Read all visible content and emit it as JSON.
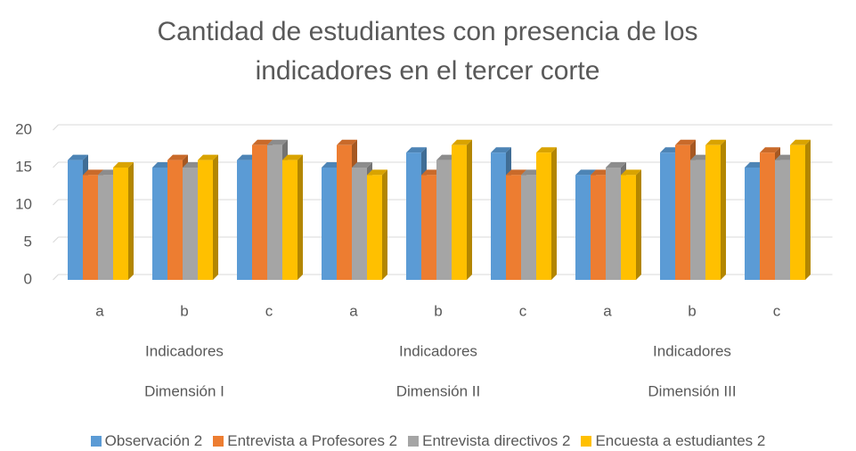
{
  "chart_data": {
    "type": "bar3d",
    "title": "Cantidad de estudiantes con presencia de los indicadores en el tercer corte",
    "categories": [
      "a",
      "b",
      "c",
      "a",
      "b",
      "c",
      "a",
      "b",
      "c"
    ],
    "groups": [
      {
        "sublabel": "Indicadores",
        "label": "Dimensión I"
      },
      {
        "sublabel": "Indicadores",
        "label": "Dimensión II"
      },
      {
        "sublabel": "Indicadores",
        "label": "Dimensión III"
      }
    ],
    "series": [
      {
        "name": "Observación 2",
        "color": "#5b9bd5",
        "values": [
          16,
          15,
          16,
          15,
          17,
          17,
          14,
          17,
          15
        ]
      },
      {
        "name": "Entrevista a Profesores 2",
        "color": "#ed7d31",
        "values": [
          14,
          16,
          18,
          18,
          14,
          14,
          14,
          18,
          17
        ]
      },
      {
        "name": "Entrevista directivos 2",
        "color": "#a5a5a5",
        "values": [
          14,
          15,
          18,
          15,
          16,
          14,
          15,
          16,
          16
        ]
      },
      {
        "name": "Encuesta a estudiantes 2",
        "color": "#ffc000",
        "values": [
          15,
          16,
          16,
          14,
          18,
          17,
          14,
          18,
          18
        ]
      }
    ],
    "ylim": [
      0,
      20
    ],
    "yticks": [
      0,
      5,
      10,
      15,
      20
    ],
    "grid": true,
    "legend": "bottom"
  }
}
